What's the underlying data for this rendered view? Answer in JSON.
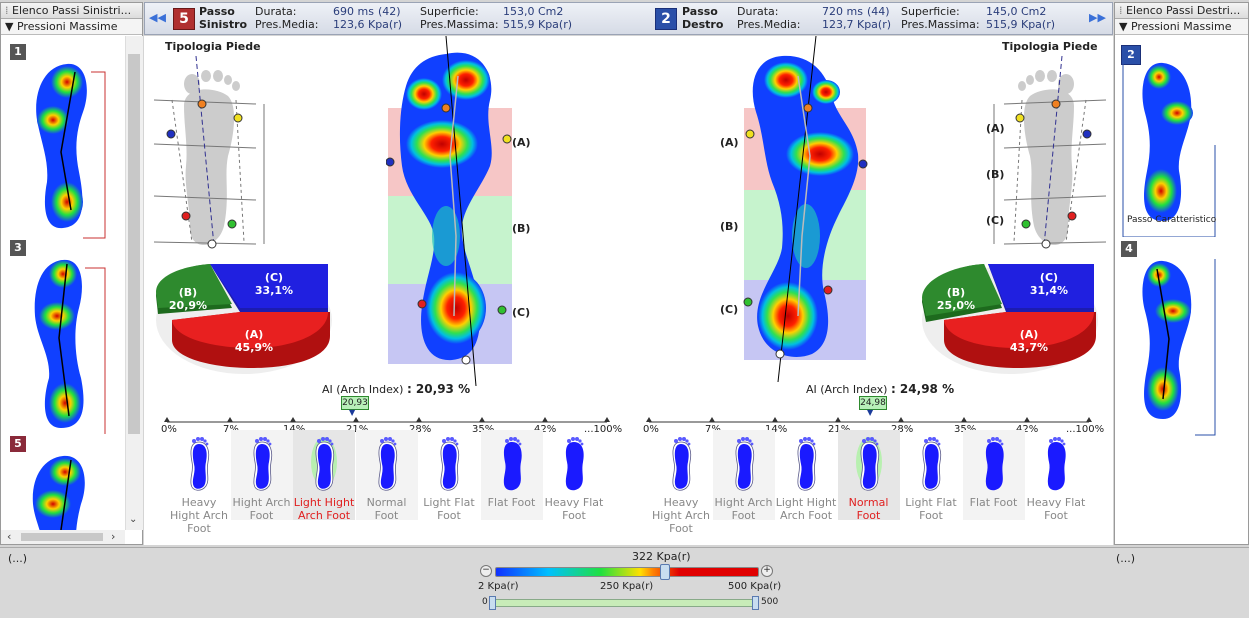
{
  "left_panel": {
    "title": "Elenco Passi Sinistri...",
    "subtitle": "Pressioni Massime",
    "thumbs": [
      {
        "num": "1",
        "color": "#555555"
      },
      {
        "num": "3",
        "color": "#555555"
      },
      {
        "num": "5",
        "color": "#8a2a3a"
      }
    ]
  },
  "right_panel": {
    "title": "Elenco Passi Destri...",
    "subtitle": "Pressioni Massime",
    "thumbs": [
      {
        "num": "2",
        "color": "#2a4fa8",
        "caption": "Passo Caratteristico"
      },
      {
        "num": "4",
        "color": "#555555"
      }
    ]
  },
  "header": {
    "left": {
      "badge": "5",
      "badge_color": "#b03030",
      "title_line1": "Passo",
      "title_line2": "Sinistro",
      "durata_label": "Durata:",
      "durata_value": "690 ms",
      "durata_count": "(42)",
      "media_label": "Pres.Media:",
      "media_value": "123,6 Kpa(r)",
      "superficie_label": "Superficie:",
      "superficie_value": "153,0 Cm2",
      "massima_label": "Pres.Massima:",
      "massima_value": "515,9 Kpa(r)"
    },
    "right": {
      "badge": "2",
      "badge_color": "#2a4fa8",
      "title_line1": "Passo",
      "title_line2": "Destro",
      "durata_label": "Durata:",
      "durata_value": "720 ms",
      "durata_count": "(44)",
      "media_label": "Pres.Media:",
      "media_value": "123,7 Kpa(r)",
      "superficie_label": "Superficie:",
      "superficie_value": "145,0 Cm2",
      "massima_label": "Pres.Massima:",
      "massima_value": "515,9 Kpa(r)"
    }
  },
  "left_analysis": {
    "tipologia": "Tipologia Piede",
    "pie": [
      {
        "key": "A",
        "label": "(A)",
        "value": "45,9%",
        "color": "#e82020"
      },
      {
        "key": "B",
        "label": "(B)",
        "value": "20,9%",
        "color": "#2e8a2e"
      },
      {
        "key": "C",
        "label": "(C)",
        "value": "33,1%",
        "color": "#2020e0"
      }
    ],
    "zone_labels": [
      "(A)",
      "(B)",
      "(C)"
    ],
    "arch_label": "AI (Arch Index)",
    "arch_value": ": 20,93 %",
    "marker": "20,93",
    "marker_value": 20.93
  },
  "right_analysis": {
    "tipologia": "Tipologia Piede",
    "pie": [
      {
        "key": "A",
        "label": "(A)",
        "value": "43,7%",
        "color": "#e82020"
      },
      {
        "key": "B",
        "label": "(B)",
        "value": "25,0%",
        "color": "#2e8a2e"
      },
      {
        "key": "C",
        "label": "(C)",
        "value": "31,4%",
        "color": "#2020e0"
      }
    ],
    "zone_labels": [
      "(A)",
      "(B)",
      "(C)"
    ],
    "arch_label": "AI (Arch Index)",
    "arch_value": ": 24,98 %",
    "marker": "24,98",
    "marker_value": 24.98
  },
  "scale_ticks": [
    "0%",
    "7%",
    "14%",
    "21%",
    "28%",
    "35%",
    "42%",
    "...100%"
  ],
  "left_categories": [
    {
      "line1": "Heavy",
      "line2": "Hight Arch",
      "line3": "Foot",
      "selected": false
    },
    {
      "line1": "Hight Arch",
      "line2": "Foot",
      "line3": "",
      "selected": false
    },
    {
      "line1": "Light Hight",
      "line2": "Arch Foot",
      "line3": "",
      "selected": true
    },
    {
      "line1": "Normal",
      "line2": "Foot",
      "line3": "",
      "selected": false
    },
    {
      "line1": "Light Flat",
      "line2": "Foot",
      "line3": "",
      "selected": false
    },
    {
      "line1": "Flat Foot",
      "line2": "",
      "line3": "",
      "selected": false
    },
    {
      "line1": "Heavy Flat",
      "line2": "Foot",
      "line3": "",
      "selected": false
    }
  ],
  "right_categories": [
    {
      "line1": "Heavy",
      "line2": "Hight Arch",
      "line3": "Foot",
      "selected": false
    },
    {
      "line1": "Hight Arch",
      "line2": "Foot",
      "line3": "",
      "selected": false
    },
    {
      "line1": "Light Hight",
      "line2": "Arch Foot",
      "line3": "",
      "selected": false
    },
    {
      "line1": "Normal",
      "line2": "Foot",
      "line3": "",
      "selected": true
    },
    {
      "line1": "Light Flat",
      "line2": "Foot",
      "line3": "",
      "selected": false
    },
    {
      "line1": "Flat Foot",
      "line2": "",
      "line3": "",
      "selected": false
    },
    {
      "line1": "Heavy Flat",
      "line2": "Foot",
      "line3": "",
      "selected": false
    }
  ],
  "bottom": {
    "left_ellipsis": "(...)",
    "right_ellipsis": "(...)",
    "current_value": "322 Kpa(r)",
    "current_fraction": 0.644,
    "min_label": "2 Kpa(r)",
    "mid_label": "250 Kpa(r)",
    "max_label": "500 Kpa(r)",
    "range_min": "0",
    "range_max": "500",
    "minus": "−",
    "plus": "+"
  },
  "colors": {
    "selected_text": "#e02020",
    "accent_blue": "#2a4fa8"
  }
}
